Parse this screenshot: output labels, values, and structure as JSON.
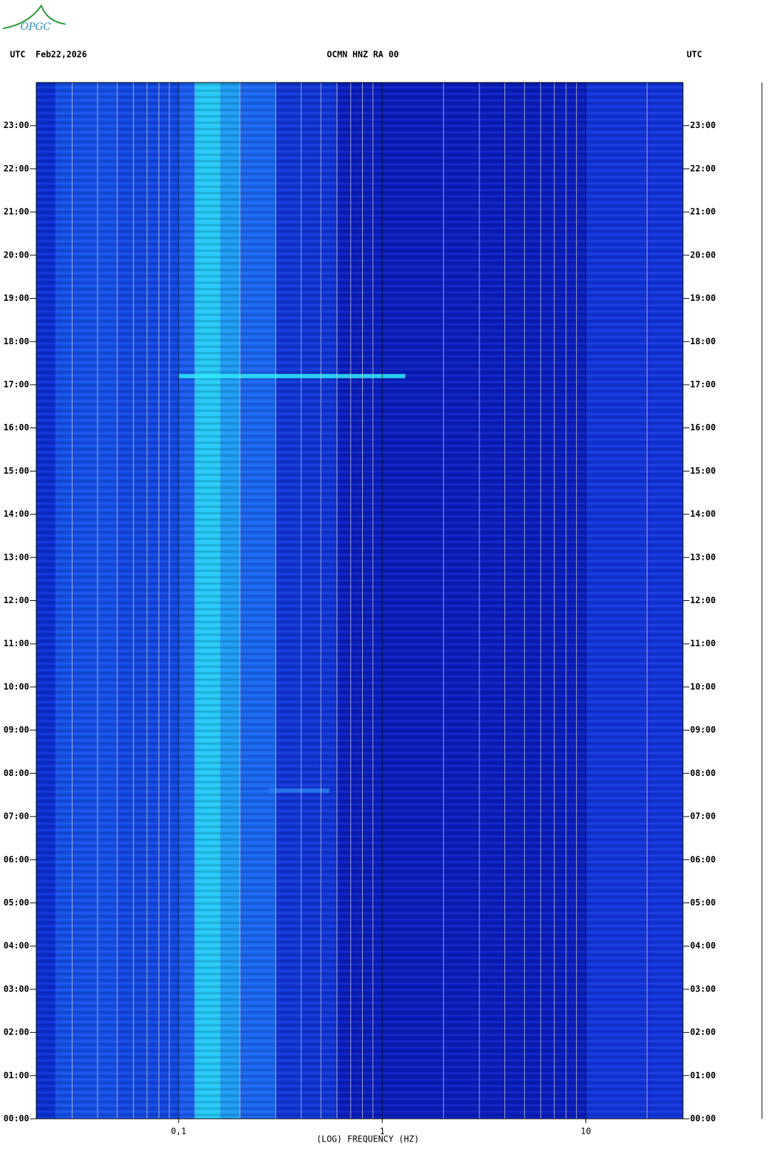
{
  "logo": "OPGC",
  "chart_data": {
    "type": "spectrogram",
    "title": "OCMN HNZ RA 00",
    "date": "Feb22,2026",
    "left_label": "UTC",
    "right_label": "UTC",
    "xlabel": "(LOG) FREQUENCY (HZ)",
    "xscale": "log",
    "xlim": [
      0.02,
      30
    ],
    "xticks": [
      {
        "value": 0.1,
        "label": "0,1"
      },
      1,
      10
    ],
    "xgrid": [
      0.03,
      0.04,
      0.05,
      0.06,
      0.07,
      0.08,
      0.09,
      0.2,
      0.3,
      0.4,
      0.5,
      0.6,
      0.7,
      0.8,
      0.9,
      2,
      3,
      4,
      5,
      6,
      7,
      8,
      9,
      20,
      30
    ],
    "ylim": [
      0,
      24
    ],
    "yticks": [
      {
        "value": 0,
        "label": "00:00"
      },
      {
        "value": 1,
        "label": "01:00"
      },
      {
        "value": 2,
        "label": "02:00"
      },
      {
        "value": 3,
        "label": "03:00"
      },
      {
        "value": 4,
        "label": "04:00"
      },
      {
        "value": 5,
        "label": "05:00"
      },
      {
        "value": 6,
        "label": "06:00"
      },
      {
        "value": 7,
        "label": "07:00"
      },
      {
        "value": 8,
        "label": "08:00"
      },
      {
        "value": 9,
        "label": "09:00"
      },
      {
        "value": 10,
        "label": "10:00"
      },
      {
        "value": 11,
        "label": "11:00"
      },
      {
        "value": 12,
        "label": "12:00"
      },
      {
        "value": 13,
        "label": "13:00"
      },
      {
        "value": 14,
        "label": "14:00"
      },
      {
        "value": 15,
        "label": "15:00"
      },
      {
        "value": 16,
        "label": "16:00"
      },
      {
        "value": 17,
        "label": "17:00"
      },
      {
        "value": 18,
        "label": "18:00"
      },
      {
        "value": 19,
        "label": "19:00"
      },
      {
        "value": 20,
        "label": "20:00"
      },
      {
        "value": 21,
        "label": "21:00"
      },
      {
        "value": 22,
        "label": "22:00"
      },
      {
        "value": 23,
        "label": "23:00"
      }
    ],
    "bands": {
      "bins": [
        0.02,
        0.025,
        0.05,
        0.1,
        0.12,
        0.16,
        0.2,
        0.3,
        0.6,
        10,
        30
      ],
      "colors": [
        "#0a30d2",
        "#1450e8",
        "#1248e2",
        "#1a5cf0",
        "#26c8f6",
        "#1e9cf4",
        "#1a66f0",
        "#1036d6",
        "#0a1ebe",
        "#1234dc"
      ]
    },
    "events": [
      {
        "time": 17.2,
        "freq": [
          0.1,
          1.3
        ],
        "color": "#30e6f8"
      },
      {
        "time": 7.6,
        "freq": [
          0.28,
          0.55
        ],
        "color": "#2a7cf0"
      }
    ]
  }
}
